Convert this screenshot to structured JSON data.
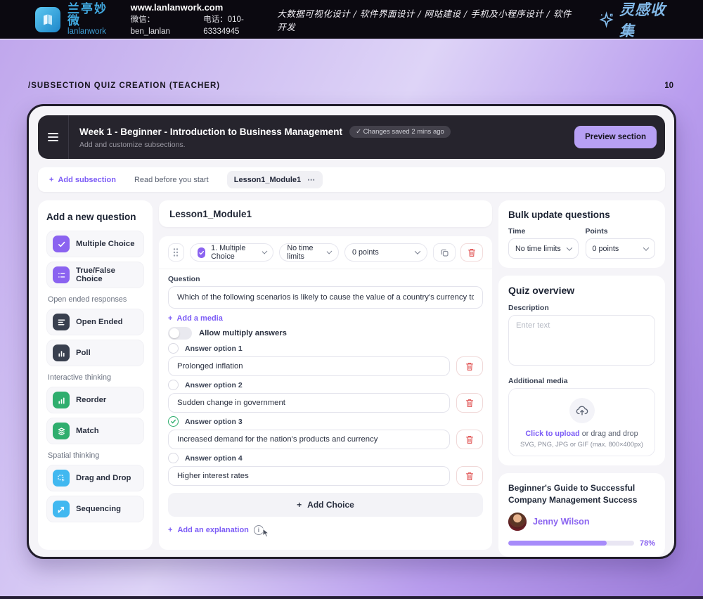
{
  "topbar": {
    "brand_cn": "兰亭妙微",
    "brand_en": "lanlanwork",
    "website": "www.lanlanwork.com",
    "wechat": "微信：ben_lanlan",
    "phone": "电话：010-63334945",
    "services": "大数据可视化设计 / 软件界面设计 / 网站建设 / 手机及小程序设计 / 软件开发",
    "collect": "灵感收集"
  },
  "page": {
    "breadcrumb": "/SUBSECTION QUIZ CREATION (TEACHER)",
    "page_number": "10"
  },
  "icons": {
    "plus": "+",
    "dots": "⋯",
    "info": "i"
  },
  "header": {
    "title": "Week 1 - Beginner - Introduction to Business Management",
    "saved_badge": "✓ Changes saved 2 mins ago",
    "subtitle": "Add and customize subsections.",
    "preview_button": "Preview section"
  },
  "tabbar": {
    "add_subsection": "Add subsection",
    "tabs": [
      {
        "label": "Read before you start"
      },
      {
        "label": "Lesson1_Module1"
      }
    ]
  },
  "question_types": {
    "title": "Add a new question",
    "groups": [
      {
        "label": "",
        "items": [
          {
            "label": "Multiple Choice"
          },
          {
            "label": "True/False Choice"
          }
        ]
      },
      {
        "label": "Open ended responses",
        "items": [
          {
            "label": "Open Ended"
          },
          {
            "label": "Poll"
          }
        ]
      },
      {
        "label": "Interactive thinking",
        "items": [
          {
            "label": "Reorder"
          },
          {
            "label": "Match"
          }
        ]
      },
      {
        "label": "Spatial thinking",
        "items": [
          {
            "label": "Drag and Drop"
          },
          {
            "label": "Sequencing"
          }
        ]
      }
    ]
  },
  "editor": {
    "module_title": "Lesson1_Module1",
    "question": {
      "type_select": "1. Multiple Choice",
      "time_select": "No time limits",
      "points_select": "0 points",
      "question_label": "Question",
      "question_text": "Which of the following scenarios is likely to cause the value of a country's currency to rise?",
      "add_media": "Add a media",
      "allow_multiple": "Allow multiply answers",
      "options": [
        {
          "label": "Answer option 1",
          "value": "Prolonged inflation",
          "correct": false
        },
        {
          "label": "Answer option 2",
          "value": "Sudden change in government",
          "correct": false
        },
        {
          "label": "Answer option 3",
          "value": "Increased demand for the nation's products and currency",
          "correct": true
        },
        {
          "label": "Answer option 4",
          "value": "Higher interest rates",
          "correct": false
        }
      ],
      "add_choice": "Add Choice",
      "add_explanation": "Add an explanation"
    }
  },
  "bulk": {
    "title": "Bulk update questions",
    "time_label": "Time",
    "time_value": "No time limits",
    "points_label": "Points",
    "points_value": "0 points"
  },
  "overview": {
    "title": "Quiz overview",
    "description_label": "Description",
    "description_placeholder": "Enter text",
    "media_label": "Additional media",
    "upload_link": "Click to upload",
    "upload_rest": " or drag and drop",
    "upload_hint": "SVG, PNG, JPG or GIF (max. 800×400px)"
  },
  "course": {
    "title": "Beginner's Guide to Successful Company Management Success",
    "author": "Jenny Wilson",
    "progress": 78,
    "progress_label": "78%"
  },
  "colors": {
    "accent_purple": "#7c5cf6",
    "icon_purple": "#8b63f0",
    "icon_dark": "#39404f",
    "icon_green": "#2fae6e",
    "icon_cyan": "#41b8f0",
    "danger_red": "#e25c5c",
    "preview_button_bg": "#b7a0f4",
    "progress_fill": "#a78bfa"
  }
}
